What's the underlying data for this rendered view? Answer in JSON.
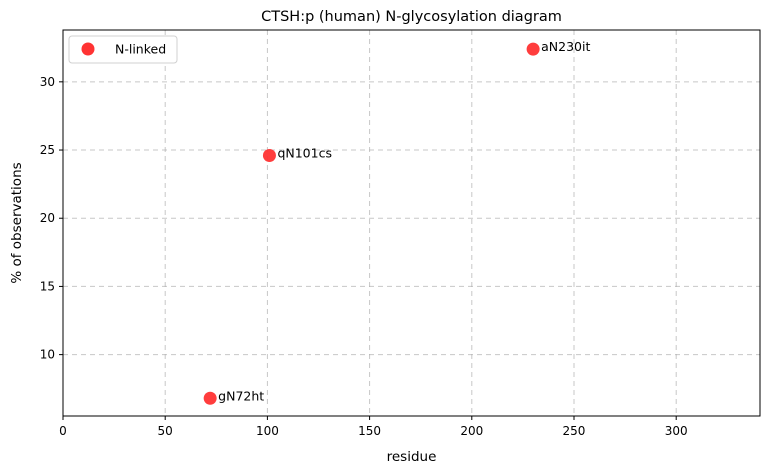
{
  "chart_data": {
    "type": "scatter",
    "title": "CTSH:p (human) N-glycosylation diagram",
    "xlabel": "residue",
    "ylabel": "% of observations",
    "xlim": [
      0,
      341
    ],
    "ylim": [
      5.5,
      33.8
    ],
    "xticks": [
      0,
      50,
      100,
      150,
      200,
      250,
      300
    ],
    "yticks": [
      10,
      15,
      20,
      25,
      30
    ],
    "grid": true,
    "legend_position": "top-left",
    "series": [
      {
        "name": "N-linked",
        "color": "#ff3333",
        "points": [
          {
            "x": 72,
            "y": 6.8,
            "label": "gN72ht"
          },
          {
            "x": 101,
            "y": 24.6,
            "label": "qN101cs"
          },
          {
            "x": 230,
            "y": 32.4,
            "label": "aN230it"
          }
        ]
      }
    ]
  }
}
